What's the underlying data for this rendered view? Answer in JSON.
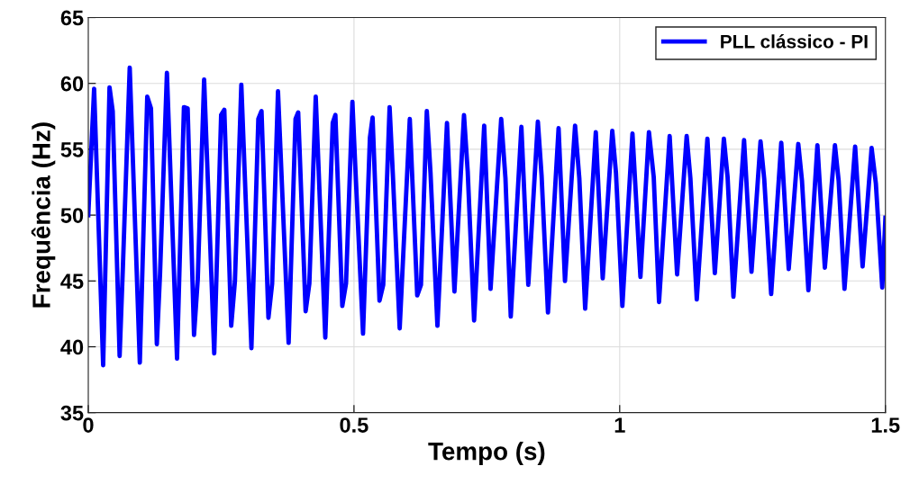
{
  "chart_data": {
    "type": "line",
    "xlabel": "Tempo (s)",
    "ylabel": "Frequência (Hz)",
    "xlim": [
      0,
      1.5
    ],
    "ylim": [
      35,
      65
    ],
    "xticks": [
      0,
      0.5,
      1,
      1.5
    ],
    "yticks": [
      35,
      40,
      45,
      50,
      55,
      60,
      65
    ],
    "grid": true,
    "legend": "top right",
    "line_style": "solid",
    "marker": "none",
    "series": [
      {
        "name": "PLL clássico - PI",
        "color": "#0000ff",
        "x": [
          0,
          0.011,
          0.028,
          0.04,
          0.046,
          0.059,
          0.065,
          0.078,
          0.097,
          0.111,
          0.118,
          0.129,
          0.135,
          0.148,
          0.167,
          0.18,
          0.187,
          0.199,
          0.206,
          0.218,
          0.237,
          0.25,
          0.256,
          0.269,
          0.276,
          0.288,
          0.307,
          0.32,
          0.326,
          0.339,
          0.346,
          0.357,
          0.377,
          0.39,
          0.395,
          0.409,
          0.416,
          0.428,
          0.446,
          0.46,
          0.465,
          0.478,
          0.485,
          0.497,
          0.503,
          0.517,
          0.53,
          0.535,
          0.548,
          0.555,
          0.567,
          0.573,
          0.586,
          0.605,
          0.619,
          0.626,
          0.637,
          0.644,
          0.657,
          0.675,
          0.689,
          0.707,
          0.714,
          0.726,
          0.745,
          0.757,
          0.777,
          0.785,
          0.795,
          0.815,
          0.828,
          0.846,
          0.853,
          0.865,
          0.885,
          0.897,
          0.916,
          0.924,
          0.935,
          0.955,
          0.968,
          0.986,
          0.993,
          1.005,
          1.024,
          1.039,
          1.055,
          1.064,
          1.074,
          1.094,
          1.108,
          1.126,
          1.133,
          1.145,
          1.165,
          1.179,
          1.196,
          1.203,
          1.214,
          1.234,
          1.248,
          1.265,
          1.272,
          1.285,
          1.304,
          1.318,
          1.336,
          1.343,
          1.355,
          1.372,
          1.386,
          1.405,
          1.412,
          1.423,
          1.443,
          1.457,
          1.474,
          1.482,
          1.494,
          1.5
        ],
        "values": [
          50.0,
          59.6,
          38.6,
          59.7,
          57.9,
          39.3,
          45.9,
          61.2,
          38.8,
          59.0,
          58.1,
          40.2,
          45.5,
          60.8,
          39.1,
          58.2,
          58.1,
          40.9,
          45.1,
          60.3,
          39.5,
          57.6,
          58.0,
          41.6,
          45.0,
          59.9,
          39.9,
          57.3,
          57.9,
          42.2,
          44.8,
          59.4,
          40.3,
          57.3,
          57.8,
          42.7,
          44.8,
          59.0,
          40.7,
          57.0,
          57.6,
          43.1,
          44.8,
          58.6,
          53.2,
          41.0,
          55.9,
          57.4,
          43.5,
          44.7,
          58.2,
          53.2,
          41.4,
          57.3,
          43.9,
          44.7,
          57.9,
          53.2,
          41.6,
          57.0,
          44.2,
          57.6,
          53.3,
          42.0,
          56.8,
          44.4,
          57.3,
          52.8,
          42.3,
          56.7,
          44.7,
          57.1,
          53.0,
          42.6,
          56.6,
          45.0,
          56.8,
          52.8,
          42.9,
          56.3,
          45.2,
          56.4,
          53.2,
          43.1,
          56.2,
          45.3,
          56.3,
          52.9,
          43.4,
          56.0,
          45.5,
          56.0,
          52.8,
          43.6,
          55.8,
          45.6,
          55.8,
          52.9,
          43.8,
          55.7,
          45.7,
          55.6,
          52.7,
          44.0,
          55.5,
          45.9,
          55.4,
          52.6,
          44.3,
          55.3,
          46.0,
          55.3,
          52.6,
          44.4,
          55.2,
          46.1,
          55.1,
          52.4,
          44.5,
          49.8
        ]
      }
    ]
  }
}
